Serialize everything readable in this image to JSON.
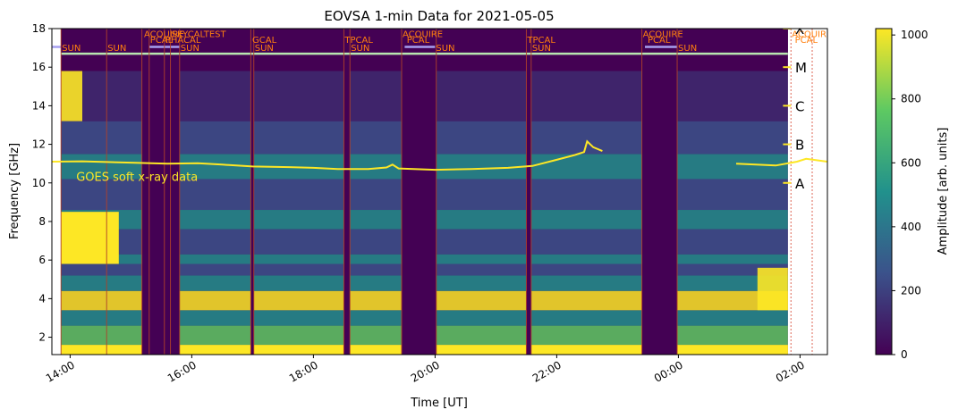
{
  "chart_data": {
    "type": "heatmap",
    "title": "EOVSA 1-min Data for 2021-05-05",
    "xlabel": "Time [UT]",
    "ylabel": "Frequency [GHz]",
    "ylim": [
      1.1,
      18
    ],
    "xlim_hours": [
      13.7,
      26.45
    ],
    "x_ticks": [
      {
        "label": "14:00",
        "hour": 14
      },
      {
        "label": "16:00",
        "hour": 16
      },
      {
        "label": "18:00",
        "hour": 18
      },
      {
        "label": "20:00",
        "hour": 20
      },
      {
        "label": "22:00",
        "hour": 22
      },
      {
        "label": "00:00",
        "hour": 24
      },
      {
        "label": "02:00",
        "hour": 26
      }
    ],
    "y_ticks": [
      2,
      4,
      6,
      8,
      10,
      12,
      14,
      16,
      18
    ],
    "colorbar": {
      "label": "Amplitude [arb. units]",
      "range": [
        0,
        1020
      ],
      "ticks": [
        0,
        200,
        400,
        600,
        800,
        1000
      ],
      "colormap": [
        "#440154",
        "#3b528b",
        "#21918c",
        "#5ec962",
        "#fde725"
      ]
    },
    "goes": {
      "label": "GOES soft x-ray data",
      "color": "#fde725",
      "class_labels": [
        {
          "label": "A",
          "freq": 10
        },
        {
          "label": "B",
          "freq": 12
        },
        {
          "label": "C",
          "freq": 14
        },
        {
          "label": "M",
          "freq": 16
        },
        {
          "label": "X",
          "freq": 18
        }
      ],
      "points": [
        [
          13.7,
          11.1
        ],
        [
          14.2,
          11.12
        ],
        [
          15.0,
          11.05
        ],
        [
          15.6,
          11.0
        ],
        [
          16.1,
          11.02
        ],
        [
          16.5,
          10.95
        ],
        [
          17.0,
          10.85
        ],
        [
          17.6,
          10.82
        ],
        [
          18.0,
          10.78
        ],
        [
          18.4,
          10.72
        ],
        [
          18.9,
          10.72
        ],
        [
          19.2,
          10.8
        ],
        [
          19.3,
          10.95
        ],
        [
          19.4,
          10.75
        ],
        [
          20.0,
          10.68
        ],
        [
          20.6,
          10.72
        ],
        [
          21.2,
          10.78
        ],
        [
          21.6,
          10.88
        ],
        [
          22.0,
          11.2
        ],
        [
          22.3,
          11.45
        ],
        [
          22.45,
          11.6
        ],
        [
          22.5,
          12.15
        ],
        [
          22.6,
          11.85
        ],
        [
          22.75,
          11.65
        ],
        [
          24.95,
          11.0
        ],
        [
          25.6,
          10.9
        ],
        [
          25.95,
          11.1
        ],
        [
          26.1,
          11.25
        ],
        [
          26.45,
          11.1
        ]
      ],
      "gap": [
        22.8,
        24.95
      ]
    },
    "scan_labels": [
      {
        "label": "SUN",
        "hour": 13.85,
        "row": "low"
      },
      {
        "label": "SUN",
        "hour": 14.6,
        "row": "low"
      },
      {
        "label": "ACQUIRE",
        "hour": 15.2,
        "row": "top"
      },
      {
        "label": "PCAL",
        "hour": 15.3,
        "row": "mid"
      },
      {
        "label": "PHACAL",
        "hour": 15.55,
        "row": "mid"
      },
      {
        "label": "SKYCALTEST",
        "hour": 15.65,
        "row": "top"
      },
      {
        "label": "SUN",
        "hour": 15.8,
        "row": "low"
      },
      {
        "label": "GCAL",
        "hour": 16.98,
        "row": "mid"
      },
      {
        "label": "SUN",
        "hour": 17.02,
        "row": "low"
      },
      {
        "label": "TPCAL",
        "hour": 18.5,
        "row": "mid"
      },
      {
        "label": "SUN",
        "hour": 18.6,
        "row": "low"
      },
      {
        "label": "ACQUIRE",
        "hour": 19.45,
        "row": "top"
      },
      {
        "label": "PCAL",
        "hour": 19.52,
        "row": "mid"
      },
      {
        "label": "SUN",
        "hour": 20.0,
        "row": "low"
      },
      {
        "label": "TPCAL",
        "hour": 21.5,
        "row": "mid"
      },
      {
        "label": "SUN",
        "hour": 21.58,
        "row": "low"
      },
      {
        "label": "ACQUIRE",
        "hour": 23.4,
        "row": "top"
      },
      {
        "label": "PCAL",
        "hour": 23.48,
        "row": "mid"
      },
      {
        "label": "SUN",
        "hour": 23.98,
        "row": "low"
      },
      {
        "label": "ACQUIRE",
        "hour": 25.85,
        "row": "top"
      },
      {
        "label": "PCAL",
        "hour": 25.9,
        "row": "mid"
      }
    ],
    "dark_intervals": [
      [
        15.18,
        15.8
      ],
      [
        16.97,
        17.02
      ],
      [
        18.5,
        18.6
      ],
      [
        19.45,
        20.02
      ],
      [
        21.5,
        21.58
      ],
      [
        23.4,
        23.98
      ]
    ],
    "active_interval": [
      13.85,
      25.8
    ],
    "scan_lines": [
      13.85,
      14.6,
      15.18,
      15.3,
      15.55,
      15.65,
      15.8,
      16.97,
      17.02,
      18.5,
      18.6,
      19.45,
      20.02,
      21.5,
      21.58,
      23.4,
      23.98
    ],
    "dashed_lines": [
      25.85,
      26.2
    ]
  }
}
